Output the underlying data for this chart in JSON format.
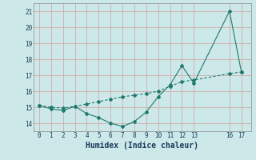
{
  "xlabel": "Humidex (Indice chaleur)",
  "line1_x": [
    0,
    1,
    2,
    3,
    4,
    5,
    6,
    7,
    8,
    9,
    10,
    11,
    12,
    13,
    16,
    17
  ],
  "line1_y": [
    15.1,
    14.9,
    14.8,
    15.05,
    14.6,
    14.35,
    14.0,
    13.8,
    14.1,
    14.7,
    15.65,
    16.4,
    17.6,
    16.5,
    21.0,
    17.2
  ],
  "line2_x": [
    0,
    1,
    2,
    3,
    4,
    5,
    6,
    7,
    8,
    9,
    10,
    11,
    12,
    13,
    16,
    17
  ],
  "line2_y": [
    15.1,
    15.0,
    14.95,
    15.05,
    15.2,
    15.35,
    15.5,
    15.65,
    15.75,
    15.85,
    16.0,
    16.3,
    16.6,
    16.7,
    17.1,
    17.2
  ],
  "line_color": "#1f7a6e",
  "bg_color": "#cce8e8",
  "grid_color_v": "#d4a0a0",
  "grid_color_h": "#d4a0a0",
  "ylim": [
    13.5,
    21.5
  ],
  "xlim": [
    -0.5,
    17.8
  ],
  "yticks": [
    14,
    15,
    16,
    17,
    18,
    19,
    20,
    21
  ],
  "xticks": [
    0,
    1,
    2,
    3,
    4,
    5,
    6,
    7,
    8,
    9,
    10,
    11,
    12,
    13,
    16,
    17
  ],
  "marker": "D",
  "markersize": 2.0,
  "linewidth": 0.8
}
